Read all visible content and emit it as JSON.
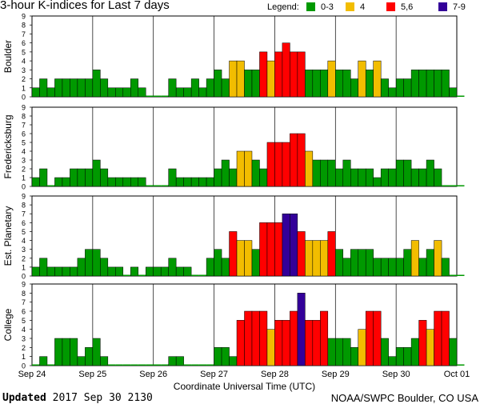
{
  "chart_data": {
    "type": "bar",
    "title": "3-hour K-indices for Last 7 days",
    "legend": {
      "label": "Legend:",
      "placement": "top-right",
      "entries": [
        {
          "label": "0-3",
          "color": "#009900"
        },
        {
          "label": "4",
          "color": "#f2bd00"
        },
        {
          "label": "5,6",
          "color": "#ff0000"
        },
        {
          "label": "7-9",
          "color": "#330099"
        }
      ]
    },
    "xlabel": "Coordinate Universal Time (UTC)",
    "x_ticks": [
      "Sep 24",
      "Sep 25",
      "Sep 26",
      "Sep 27",
      "Sep 28",
      "Sep 29",
      "Sep 30",
      "Oct 01"
    ],
    "ylim": [
      0,
      9
    ],
    "y_ticks": [
      "0",
      "1",
      "2",
      "3",
      "4",
      "5",
      "6",
      "7",
      "8",
      "9"
    ],
    "grid": "vertical day lines",
    "interval_hours": 3,
    "panels": [
      {
        "name": "Boulder",
        "values": [
          1,
          2,
          1,
          2,
          2,
          2,
          2,
          2,
          3,
          2,
          1,
          1,
          1,
          2,
          1,
          0,
          0,
          0,
          2,
          1,
          1,
          2,
          1,
          2,
          3,
          2,
          4,
          4,
          3,
          3,
          5,
          4,
          5,
          6,
          5,
          5,
          3,
          3,
          3,
          4,
          3,
          3,
          2,
          4,
          3,
          4,
          2,
          1,
          2,
          2,
          3,
          3,
          3,
          3,
          3,
          1,
          0
        ]
      },
      {
        "name": "Fredericksburg",
        "values": [
          1,
          2,
          0,
          1,
          1,
          2,
          2,
          2,
          3,
          2,
          1,
          1,
          1,
          1,
          1,
          0,
          0,
          0,
          2,
          1,
          1,
          1,
          1,
          1,
          2,
          3,
          2,
          4,
          4,
          3,
          2,
          5,
          5,
          5,
          6,
          6,
          4,
          3,
          3,
          3,
          2,
          3,
          2,
          2,
          2,
          1,
          2,
          2,
          3,
          3,
          2,
          2,
          3,
          2,
          0,
          0,
          0
        ]
      },
      {
        "name": "Est. Planetary",
        "values": [
          1,
          2,
          1,
          1,
          1,
          1,
          2,
          3,
          3,
          2,
          1,
          1,
          0,
          1,
          0,
          1,
          1,
          1,
          2,
          1,
          1,
          0,
          0,
          2,
          3,
          2,
          5,
          4,
          4,
          3,
          6,
          6,
          6,
          7,
          7,
          5,
          4,
          4,
          4,
          5,
          3,
          2,
          3,
          3,
          3,
          2,
          2,
          2,
          2,
          3,
          4,
          2,
          3,
          4,
          2,
          0,
          0
        ]
      },
      {
        "name": "College",
        "values": [
          0,
          1,
          0,
          3,
          3,
          3,
          1,
          2,
          3,
          1,
          0,
          0,
          0,
          0,
          0,
          0,
          0,
          0,
          1,
          1,
          0,
          0,
          0,
          0,
          2,
          2,
          1,
          5,
          6,
          6,
          6,
          4,
          5,
          5,
          6,
          8,
          5,
          5,
          6,
          3,
          3,
          3,
          2,
          4,
          6,
          6,
          3,
          1,
          2,
          2,
          3,
          5,
          4,
          6,
          6,
          3,
          0
        ]
      }
    ]
  },
  "footer": {
    "updated_label": "Updated",
    "updated_value": "2017 Sep 30 2130",
    "credit": "NOAA/SWPC Boulder, CO USA"
  }
}
